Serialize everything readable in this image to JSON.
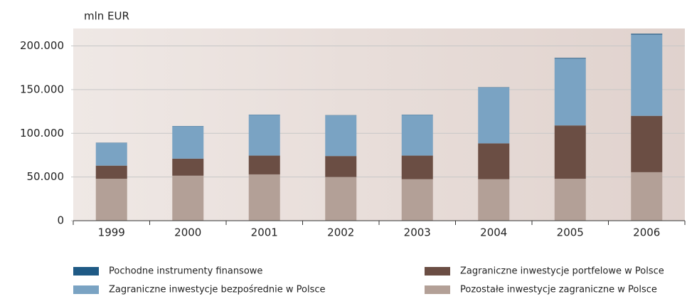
{
  "chart_data": {
    "type": "stacked_bar",
    "y_axis_label": "mln EUR",
    "categories": [
      "1999",
      "2000",
      "2001",
      "2002",
      "2003",
      "2004",
      "2005",
      "2006"
    ],
    "series": [
      {
        "name": "Pozostałe inwestycje zagraniczne w Polsce",
        "color": "#b3a097",
        "values": [
          48000,
          51500,
          53000,
          50000,
          47500,
          47500,
          48000,
          55500
        ]
      },
      {
        "name": "Zagraniczne inwestycje portfelowe w Polsce",
        "color": "#6b4e44",
        "values": [
          15000,
          19500,
          21500,
          24000,
          27000,
          41000,
          61000,
          64500
        ]
      },
      {
        "name": "Zagraniczne inwestycje bezpośrednie w Polsce",
        "color": "#7aa3c3",
        "values": [
          26000,
          37000,
          46500,
          46500,
          46500,
          64000,
          76500,
          93000
        ]
      },
      {
        "name": "Pochodne instrumenty finansowe",
        "color": "#1f5a85",
        "values": [
          300,
          300,
          300,
          300,
          300,
          300,
          800,
          1000
        ]
      }
    ],
    "ylim": [
      0,
      220000
    ],
    "yticks": [
      0,
      {
        "value": 50000,
        "label": "50.000"
      },
      {
        "value": 100000,
        "label": "100.000"
      },
      {
        "value": 150000,
        "label": "150.000"
      },
      {
        "value": 200000,
        "label": "200.000"
      }
    ],
    "grid": true
  }
}
